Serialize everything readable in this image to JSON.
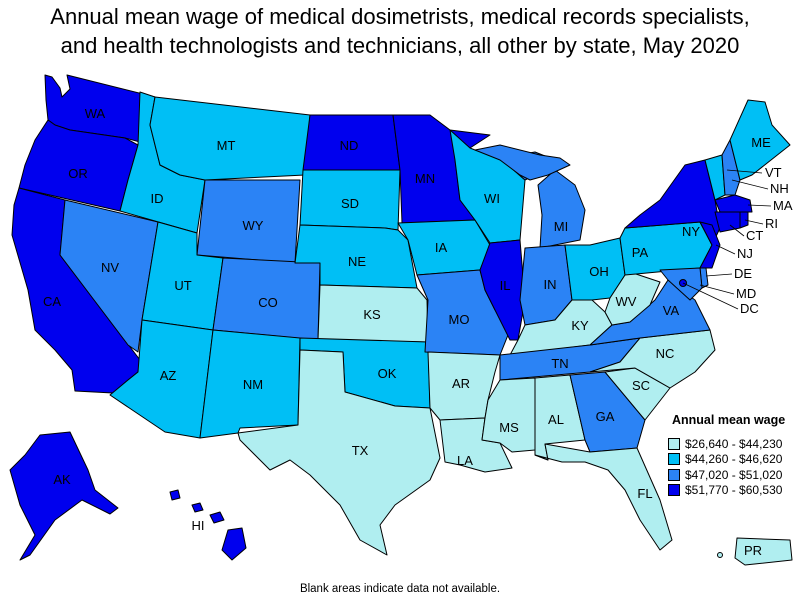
{
  "title": {
    "line1": "Annual mean wage of medical dosimetrists, medical records specialists,",
    "line2": "and health technologists and technicians, all other by state, May 2020"
  },
  "legend": {
    "title": "Annual mean wage",
    "ranges": [
      {
        "label": "$26,640 - $44,230",
        "color": "#b0eef0"
      },
      {
        "label": "$44,260 - $46,620",
        "color": "#00bff5"
      },
      {
        "label": "$47,020 - $51,020",
        "color": "#2b83f5"
      },
      {
        "label": "$51,770 - $60,530",
        "color": "#0000ee"
      }
    ]
  },
  "states": {
    "WA": 3,
    "OR": 3,
    "CA": 3,
    "NV": 2,
    "ID": 1,
    "MT": 1,
    "WY": 2,
    "UT": 1,
    "AZ": 1,
    "CO": 2,
    "NM": 1,
    "ND": 3,
    "SD": 1,
    "NE": 1,
    "KS": 0,
    "OK": 1,
    "TX": 0,
    "MN": 3,
    "IA": 1,
    "MO": 2,
    "AR": 0,
    "LA": 0,
    "WI": 1,
    "IL": 3,
    "MI": 2,
    "IN": 2,
    "OH": 1,
    "KY": 0,
    "TN": 2,
    "MS": 0,
    "AL": 0,
    "GA": 2,
    "FL": 0,
    "SC": 0,
    "NC": 0,
    "VA": 2,
    "WV": 0,
    "PA": 1,
    "NY": 3,
    "ME": 1,
    "VT": 1,
    "NH": 2,
    "MA": 3,
    "RI": 3,
    "CT": 3,
    "NJ": 3,
    "DE": 2,
    "MD": 2,
    "DC": 3,
    "AK": 3,
    "HI": 3,
    "PR": 0
  },
  "footnote": "Blank areas indicate data not available."
}
